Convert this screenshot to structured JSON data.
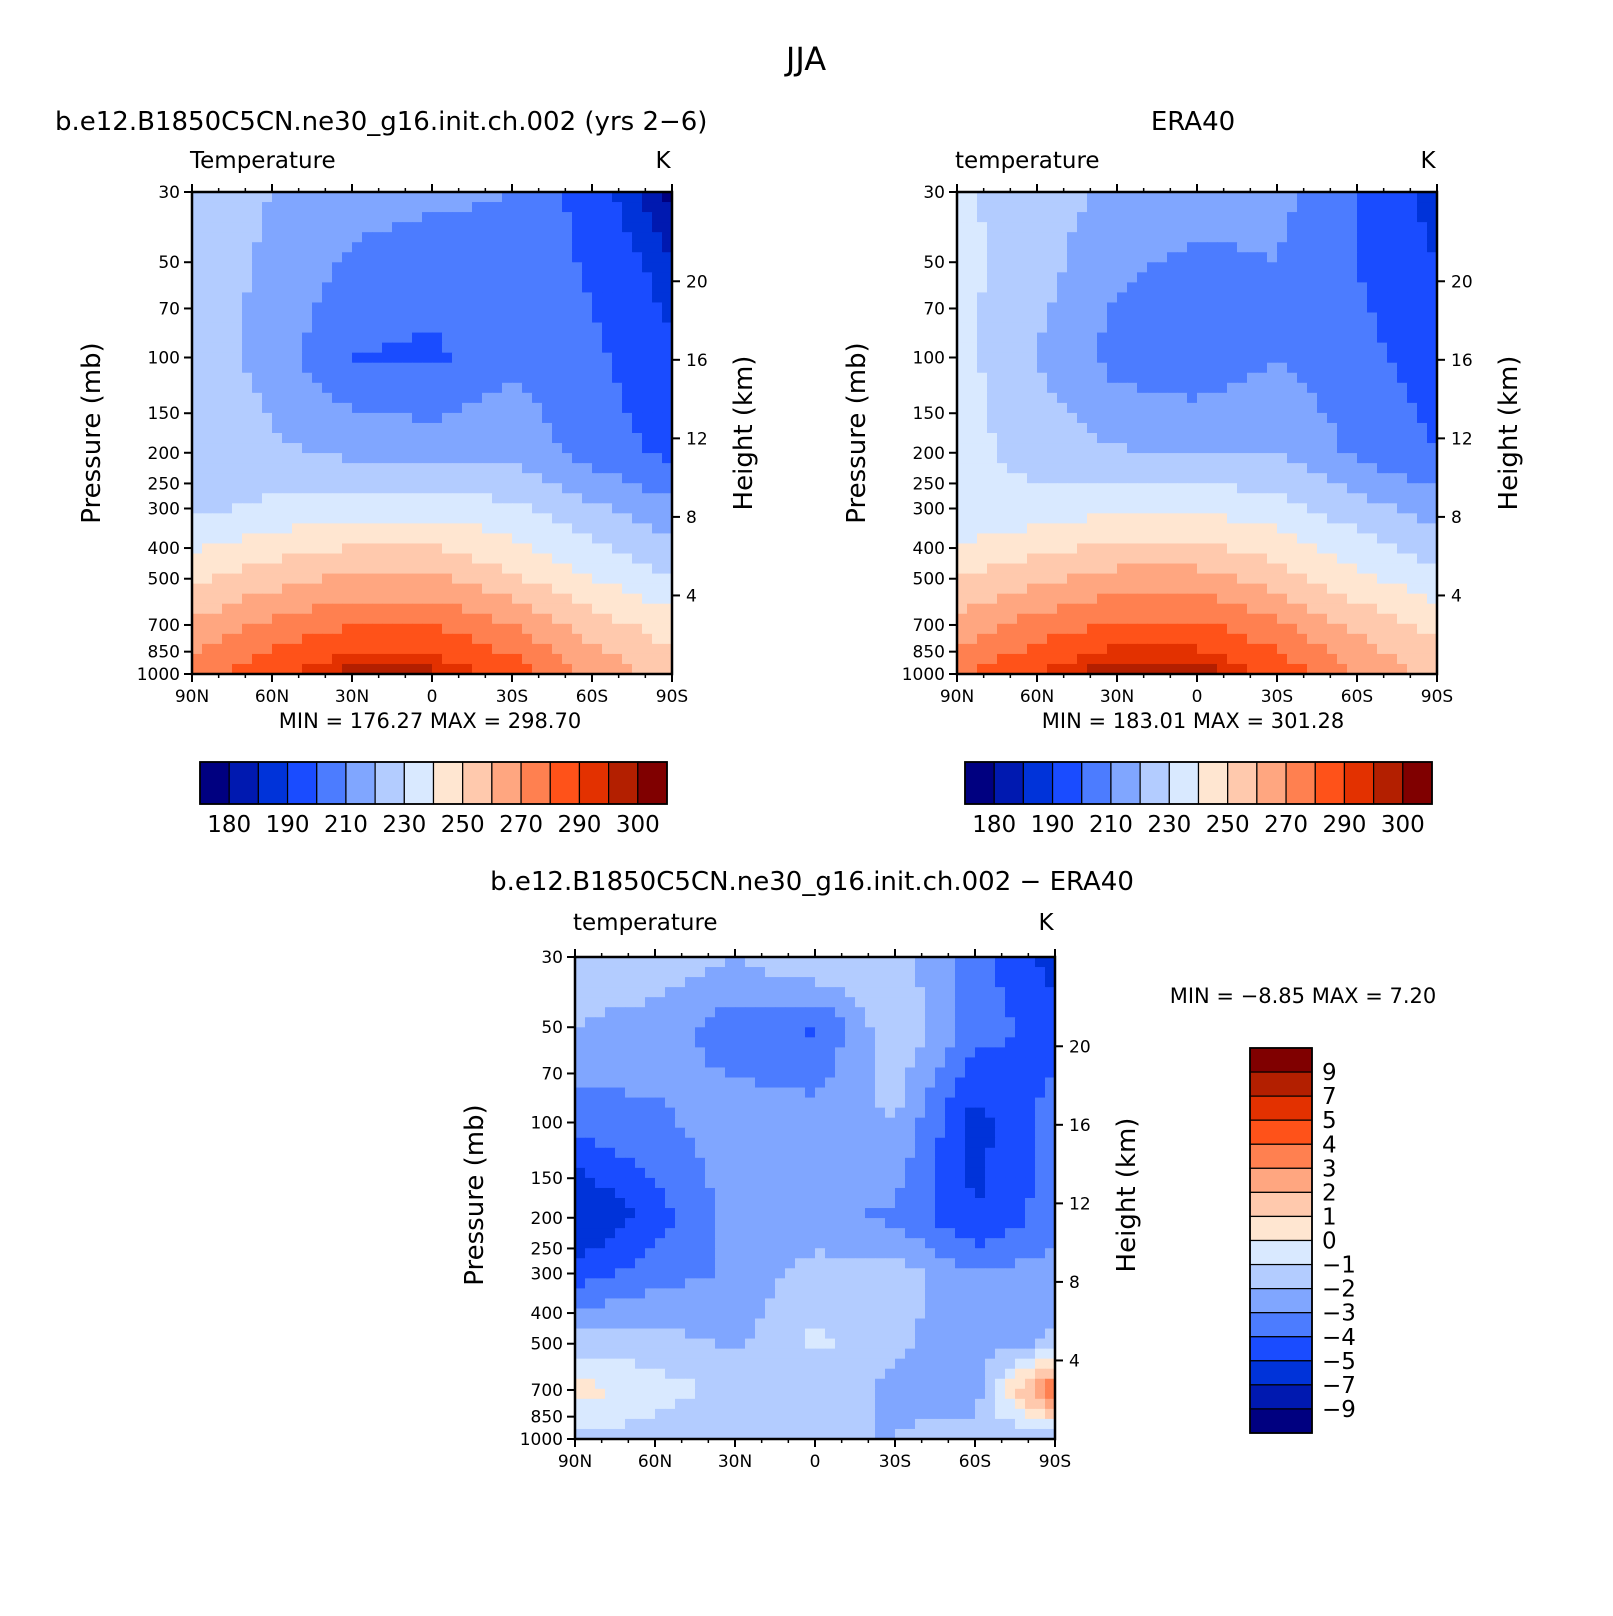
{
  "figure": {
    "title": "JJA"
  },
  "panels": [
    {
      "title": "b.e12.B1850C5CN.ne30_g16.init.ch.002 (yrs 2−6)",
      "left_label": "Temperature",
      "right_label": "K",
      "ylabel": "Pressure (mb)",
      "y2label": "Height (km)",
      "min_max": "MIN =  176.27   MAX =  298.70",
      "colorbar_labels": [
        "180",
        "190",
        "210",
        "230",
        "250",
        "270",
        "290",
        "300"
      ]
    },
    {
      "title": "ERA40",
      "left_label": "temperature",
      "right_label": "K",
      "ylabel": "Pressure (mb)",
      "y2label": "Height (km)",
      "min_max": "MIN =  183.01   MAX =  301.28",
      "colorbar_labels": [
        "180",
        "190",
        "210",
        "230",
        "250",
        "270",
        "290",
        "300"
      ]
    },
    {
      "title": "b.e12.B1850C5CN.ne30_g16.init.ch.002 − ERA40",
      "left_label": "temperature",
      "right_label": "K",
      "ylabel": "Pressure (mb)",
      "y2label": "Height (km)",
      "min_max": "MIN =   −8.85   MAX =    7.20",
      "colorbar_labels": [
        "9",
        "7",
        "5",
        "4",
        "3",
        "2",
        "1",
        "0",
        "−1",
        "−2",
        "−3",
        "−4",
        "−5",
        "−7",
        "−9"
      ]
    }
  ],
  "chart_data": [
    {
      "type": "heatmap",
      "title": "b.e12.B1850C5CN.ne30_g16.init.ch.002 (yrs 2−6)",
      "xlabel": "",
      "ylabel": "Pressure (mb)",
      "y2label": "Height (km)",
      "x_ticks": [
        "90N",
        "60N",
        "30N",
        "0",
        "30S",
        "60S",
        "90S"
      ],
      "y_ticks": [
        "30",
        "50",
        "70",
        "100",
        "150",
        "200",
        "250",
        "300",
        "400",
        "500",
        "700",
        "850",
        "1000"
      ],
      "y2_ticks": [
        "20",
        "16",
        "12",
        "8",
        "4"
      ],
      "y_scale": "log",
      "ylim": [
        1000,
        30
      ],
      "xlim": [
        90,
        -90
      ],
      "units": "K",
      "min": 176.27,
      "max": 298.7,
      "levels": [
        180,
        185,
        190,
        200,
        210,
        220,
        230,
        240,
        250,
        260,
        270,
        280,
        290,
        295,
        300
      ],
      "colors": [
        "#000080",
        "#0019b0",
        "#0033d9",
        "#1a4cff",
        "#4c7cff",
        "#80a6ff",
        "#b3ccff",
        "#d9e9ff",
        "#ffe6d1",
        "#ffc9ad",
        "#ffa680",
        "#ff8050",
        "#ff5219",
        "#e33100",
        "#b31f00",
        "#800000"
      ],
      "lat": [
        90,
        60,
        30,
        0,
        -30,
        -60,
        -90
      ],
      "plev": [
        30,
        50,
        100,
        200,
        300,
        500,
        700,
        1000
      ],
      "z": [
        [
          225,
          220,
          215,
          212,
          210,
          195,
          178
        ],
        [
          226,
          218,
          208,
          205,
          208,
          198,
          185
        ],
        [
          228,
          215,
          200,
          198,
          208,
          202,
          192
        ],
        [
          230,
          222,
          218,
          216,
          218,
          205,
          198
        ],
        [
          228,
          232,
          236,
          236,
          232,
          222,
          212
        ],
        [
          248,
          256,
          262,
          262,
          252,
          240,
          230
        ],
        [
          262,
          272,
          280,
          280,
          270,
          255,
          245
        ],
        [
          276,
          288,
          298,
          297,
          286,
          268,
          255
        ]
      ]
    },
    {
      "type": "heatmap",
      "title": "ERA40",
      "xlabel": "",
      "ylabel": "Pressure (mb)",
      "y2label": "Height (km)",
      "x_ticks": [
        "90N",
        "60N",
        "30N",
        "0",
        "30S",
        "60S",
        "90S"
      ],
      "y_ticks": [
        "30",
        "50",
        "70",
        "100",
        "150",
        "200",
        "250",
        "300",
        "400",
        "500",
        "700",
        "850",
        "1000"
      ],
      "y2_ticks": [
        "20",
        "16",
        "12",
        "8",
        "4"
      ],
      "y_scale": "log",
      "ylim": [
        1000,
        30
      ],
      "xlim": [
        90,
        -90
      ],
      "units": "K",
      "min": 183.01,
      "max": 301.28,
      "levels": [
        180,
        185,
        190,
        200,
        210,
        220,
        230,
        240,
        250,
        260,
        270,
        280,
        290,
        295,
        300
      ],
      "colors": [
        "#000080",
        "#0019b0",
        "#0033d9",
        "#1a4cff",
        "#4c7cff",
        "#80a6ff",
        "#b3ccff",
        "#d9e9ff",
        "#ffe6d1",
        "#ffc9ad",
        "#ffa680",
        "#ff8050",
        "#ff5219",
        "#e33100",
        "#b31f00",
        "#800000"
      ],
      "lat": [
        90,
        60,
        30,
        0,
        -30,
        -60,
        -90
      ],
      "plev": [
        30,
        50,
        100,
        200,
        300,
        500,
        700,
        1000
      ],
      "z": [
        [
          232,
          225,
          218,
          215,
          213,
          200,
          186
        ],
        [
          233,
          224,
          212,
          208,
          210,
          200,
          190
        ],
        [
          234,
          220,
          206,
          203,
          210,
          203,
          195
        ],
        [
          234,
          226,
          221,
          219,
          220,
          208,
          200
        ],
        [
          230,
          234,
          238,
          238,
          234,
          224,
          215
        ],
        [
          250,
          258,
          264,
          264,
          255,
          243,
          233
        ],
        [
          264,
          274,
          282,
          282,
          272,
          257,
          247
        ],
        [
          278,
          290,
          300,
          299,
          288,
          270,
          257
        ]
      ]
    },
    {
      "type": "heatmap",
      "title": "b.e12.B1850C5CN.ne30_g16.init.ch.002 − ERA40",
      "xlabel": "",
      "ylabel": "Pressure (mb)",
      "y2label": "Height (km)",
      "x_ticks": [
        "90N",
        "60N",
        "30N",
        "0",
        "30S",
        "60S",
        "90S"
      ],
      "y_ticks": [
        "30",
        "50",
        "70",
        "100",
        "150",
        "200",
        "250",
        "300",
        "400",
        "500",
        "700",
        "850",
        "1000"
      ],
      "y2_ticks": [
        "20",
        "16",
        "12",
        "8",
        "4"
      ],
      "y_scale": "log",
      "ylim": [
        1000,
        30
      ],
      "xlim": [
        90,
        -90
      ],
      "units": "K",
      "min": -8.85,
      "max": 7.2,
      "levels": [
        -9,
        -7,
        -5,
        -4,
        -3,
        -2,
        -1,
        0,
        1,
        2,
        3,
        4,
        5,
        7,
        9
      ],
      "colors": [
        "#000080",
        "#0019b0",
        "#0033d9",
        "#1a4cff",
        "#4c7cff",
        "#80a6ff",
        "#b3ccff",
        "#d9e9ff",
        "#ffe6d1",
        "#ffc9ad",
        "#ffa680",
        "#ff8050",
        "#ff5219",
        "#e33100",
        "#b31f00",
        "#800000"
      ],
      "lat": [
        90,
        60,
        30,
        0,
        -30,
        -60,
        -90
      ],
      "plev": [
        30,
        50,
        100,
        200,
        300,
        500,
        700,
        1000
      ],
      "z": [
        [
          -1.5,
          -1.2,
          -2.0,
          -0.8,
          -1.5,
          -3.5,
          -5.5
        ],
        [
          -2.0,
          -2.5,
          -3.5,
          -4.2,
          -1.0,
          -3.5,
          -4.5
        ],
        [
          -3.5,
          -3.2,
          -2.5,
          -2.5,
          -2.0,
          -5.5,
          -3.5
        ],
        [
          -6.5,
          -4.5,
          -2.5,
          -2.8,
          -3.2,
          -5.0,
          -3.5
        ],
        [
          -4.5,
          -3.5,
          -2.8,
          -1.5,
          -1.5,
          -3.0,
          -2.5
        ],
        [
          -1.5,
          -1.5,
          -2.2,
          -0.8,
          -1.8,
          -2.5,
          -1.8
        ],
        [
          0.5,
          -0.6,
          -1.2,
          -1.5,
          -2.2,
          -2.5,
          4.5
        ],
        [
          -1.2,
          -1.5,
          -2.0,
          -2.0,
          -2.0,
          -1.5,
          -2.0
        ]
      ]
    }
  ]
}
